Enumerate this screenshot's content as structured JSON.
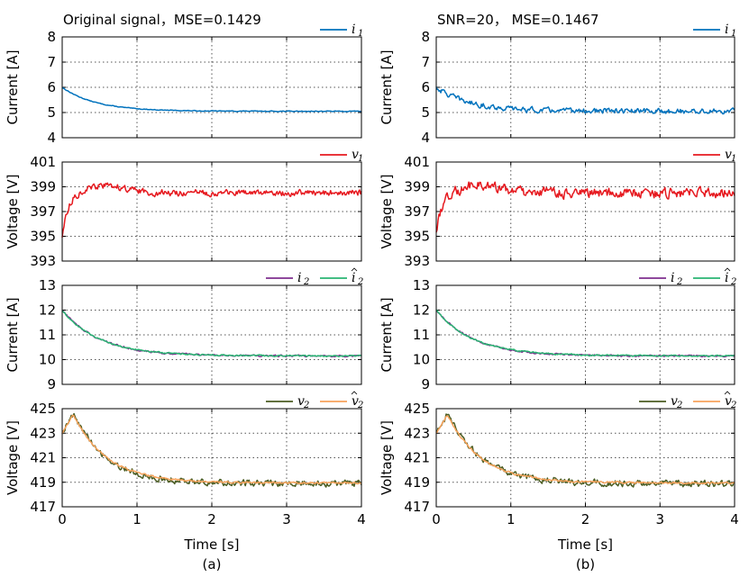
{
  "chart_data": [
    {
      "column_label": "(a)",
      "title": "Original signal，MSE=0.1429",
      "xlabel": "Time [s]",
      "xlim": [
        0,
        4
      ],
      "xticks": [
        "0",
        "1",
        "2",
        "3",
        "4"
      ],
      "type": "line",
      "panels": [
        {
          "ylabel": "Current [A]",
          "ylim": [
            4,
            8
          ],
          "yticks": [
            "4",
            "5",
            "6",
            "7",
            "8"
          ],
          "legend_placement": "top-right",
          "series": [
            {
              "name": "i1",
              "legend_base": "i",
              "legend_sub": "1",
              "color": "#0072bd",
              "model": {
                "type": "exp",
                "start": 6.0,
                "end": 5.05,
                "tau": 0.45
              },
              "noise": 0.012
            }
          ]
        },
        {
          "ylabel": "Voltage [V]",
          "ylim": [
            393,
            401
          ],
          "yticks": [
            "393",
            "395",
            "397",
            "399",
            "401"
          ],
          "legend_placement": "top-right",
          "series": [
            {
              "name": "v1",
              "legend_base": "v",
              "legend_sub": "1",
              "color": "#e6191f",
              "model": {
                "type": "overshoot",
                "start": 395.0,
                "end": 398.5,
                "tau": 0.08,
                "peak": 399.1,
                "peak_t": 0.6
              },
              "noise": 0.22
            }
          ]
        },
        {
          "ylabel": "Current [A]",
          "ylim": [
            9,
            13
          ],
          "yticks": [
            "9",
            "10",
            "11",
            "12",
            "13"
          ],
          "legend_placement": "top-right",
          "series": [
            {
              "name": "i2",
              "legend_base": "i",
              "legend_sub": "2",
              "hat": false,
              "color": "#7e2f8e",
              "model": {
                "type": "exp",
                "start": 12.0,
                "end": 10.15,
                "tau": 0.5
              },
              "noise": 0.03
            },
            {
              "name": "i2 hat",
              "legend_base": "i",
              "legend_sub": "2",
              "hat": true,
              "color": "#2ab573",
              "model": {
                "type": "exp",
                "start": 12.0,
                "end": 10.15,
                "tau": 0.5
              },
              "noise": 0.025
            }
          ]
        },
        {
          "ylabel": "Voltage [V]",
          "ylim": [
            417,
            425
          ],
          "yticks": [
            "417",
            "419",
            "421",
            "423",
            "425"
          ],
          "legend_placement": "top-right",
          "series": [
            {
              "name": "v2",
              "legend_base": "v",
              "legend_sub": "2",
              "hat": false,
              "color": "#4b5d23",
              "model": {
                "type": "rise_decay",
                "start": 423.0,
                "peak": 424.6,
                "peak_t": 0.15,
                "end": 418.9,
                "tau": 0.45
              },
              "noise": 0.22
            },
            {
              "name": "v2 hat",
              "legend_base": "v",
              "legend_sub": "2",
              "hat": true,
              "color": "#f7a35c",
              "model": {
                "type": "rise_decay",
                "start": 423.0,
                "peak": 424.5,
                "peak_t": 0.15,
                "end": 418.95,
                "tau": 0.45
              },
              "noise": 0.06
            }
          ]
        }
      ]
    },
    {
      "column_label": "(b)",
      "title": "SNR=20，   MSE=0.1467",
      "xlabel": "Time [s]",
      "xlim": [
        0,
        4
      ],
      "xticks": [
        "0",
        "1",
        "2",
        "3",
        "4"
      ],
      "type": "line",
      "panels": [
        {
          "ylabel": "Current [A]",
          "ylim": [
            4,
            8
          ],
          "yticks": [
            "4",
            "5",
            "6",
            "7",
            "8"
          ],
          "legend_placement": "top-right",
          "series": [
            {
              "name": "i1",
              "legend_base": "i",
              "legend_sub": "1",
              "color": "#0072bd",
              "model": {
                "type": "exp",
                "start": 6.0,
                "end": 5.05,
                "tau": 0.45
              },
              "noise": 0.09
            }
          ]
        },
        {
          "ylabel": "Voltage [V]",
          "ylim": [
            393,
            401
          ],
          "yticks": [
            "393",
            "395",
            "397",
            "399",
            "401"
          ],
          "legend_placement": "top-right",
          "series": [
            {
              "name": "v1",
              "legend_base": "v",
              "legend_sub": "1",
              "color": "#e6191f",
              "model": {
                "type": "overshoot",
                "start": 395.2,
                "end": 398.5,
                "tau": 0.08,
                "peak": 399.2,
                "peak_t": 0.6
              },
              "noise": 0.35
            }
          ]
        },
        {
          "ylabel": "Current [A]",
          "ylim": [
            9,
            13
          ],
          "yticks": [
            "9",
            "10",
            "11",
            "12",
            "13"
          ],
          "legend_placement": "top-right",
          "series": [
            {
              "name": "i2",
              "legend_base": "i",
              "legend_sub": "2",
              "hat": false,
              "color": "#7e2f8e",
              "model": {
                "type": "exp",
                "start": 12.0,
                "end": 10.15,
                "tau": 0.5
              },
              "noise": 0.03
            },
            {
              "name": "i2 hat",
              "legend_base": "i",
              "legend_sub": "2",
              "hat": true,
              "color": "#2ab573",
              "model": {
                "type": "exp",
                "start": 12.0,
                "end": 10.15,
                "tau": 0.5
              },
              "noise": 0.025
            }
          ]
        },
        {
          "ylabel": "Voltage [V]",
          "ylim": [
            417,
            425
          ],
          "yticks": [
            "417",
            "419",
            "421",
            "423",
            "425"
          ],
          "legend_placement": "top-right",
          "series": [
            {
              "name": "v2",
              "legend_base": "v",
              "legend_sub": "2",
              "hat": false,
              "color": "#4b5d23",
              "model": {
                "type": "rise_decay",
                "start": 423.0,
                "peak": 424.6,
                "peak_t": 0.15,
                "end": 418.9,
                "tau": 0.45
              },
              "noise": 0.22
            },
            {
              "name": "v2 hat",
              "legend_base": "v",
              "legend_sub": "2",
              "hat": true,
              "color": "#f7a35c",
              "model": {
                "type": "rise_decay",
                "start": 423.0,
                "peak": 424.5,
                "peak_t": 0.15,
                "end": 418.95,
                "tau": 0.45
              },
              "noise": 0.06
            }
          ]
        }
      ]
    }
  ]
}
